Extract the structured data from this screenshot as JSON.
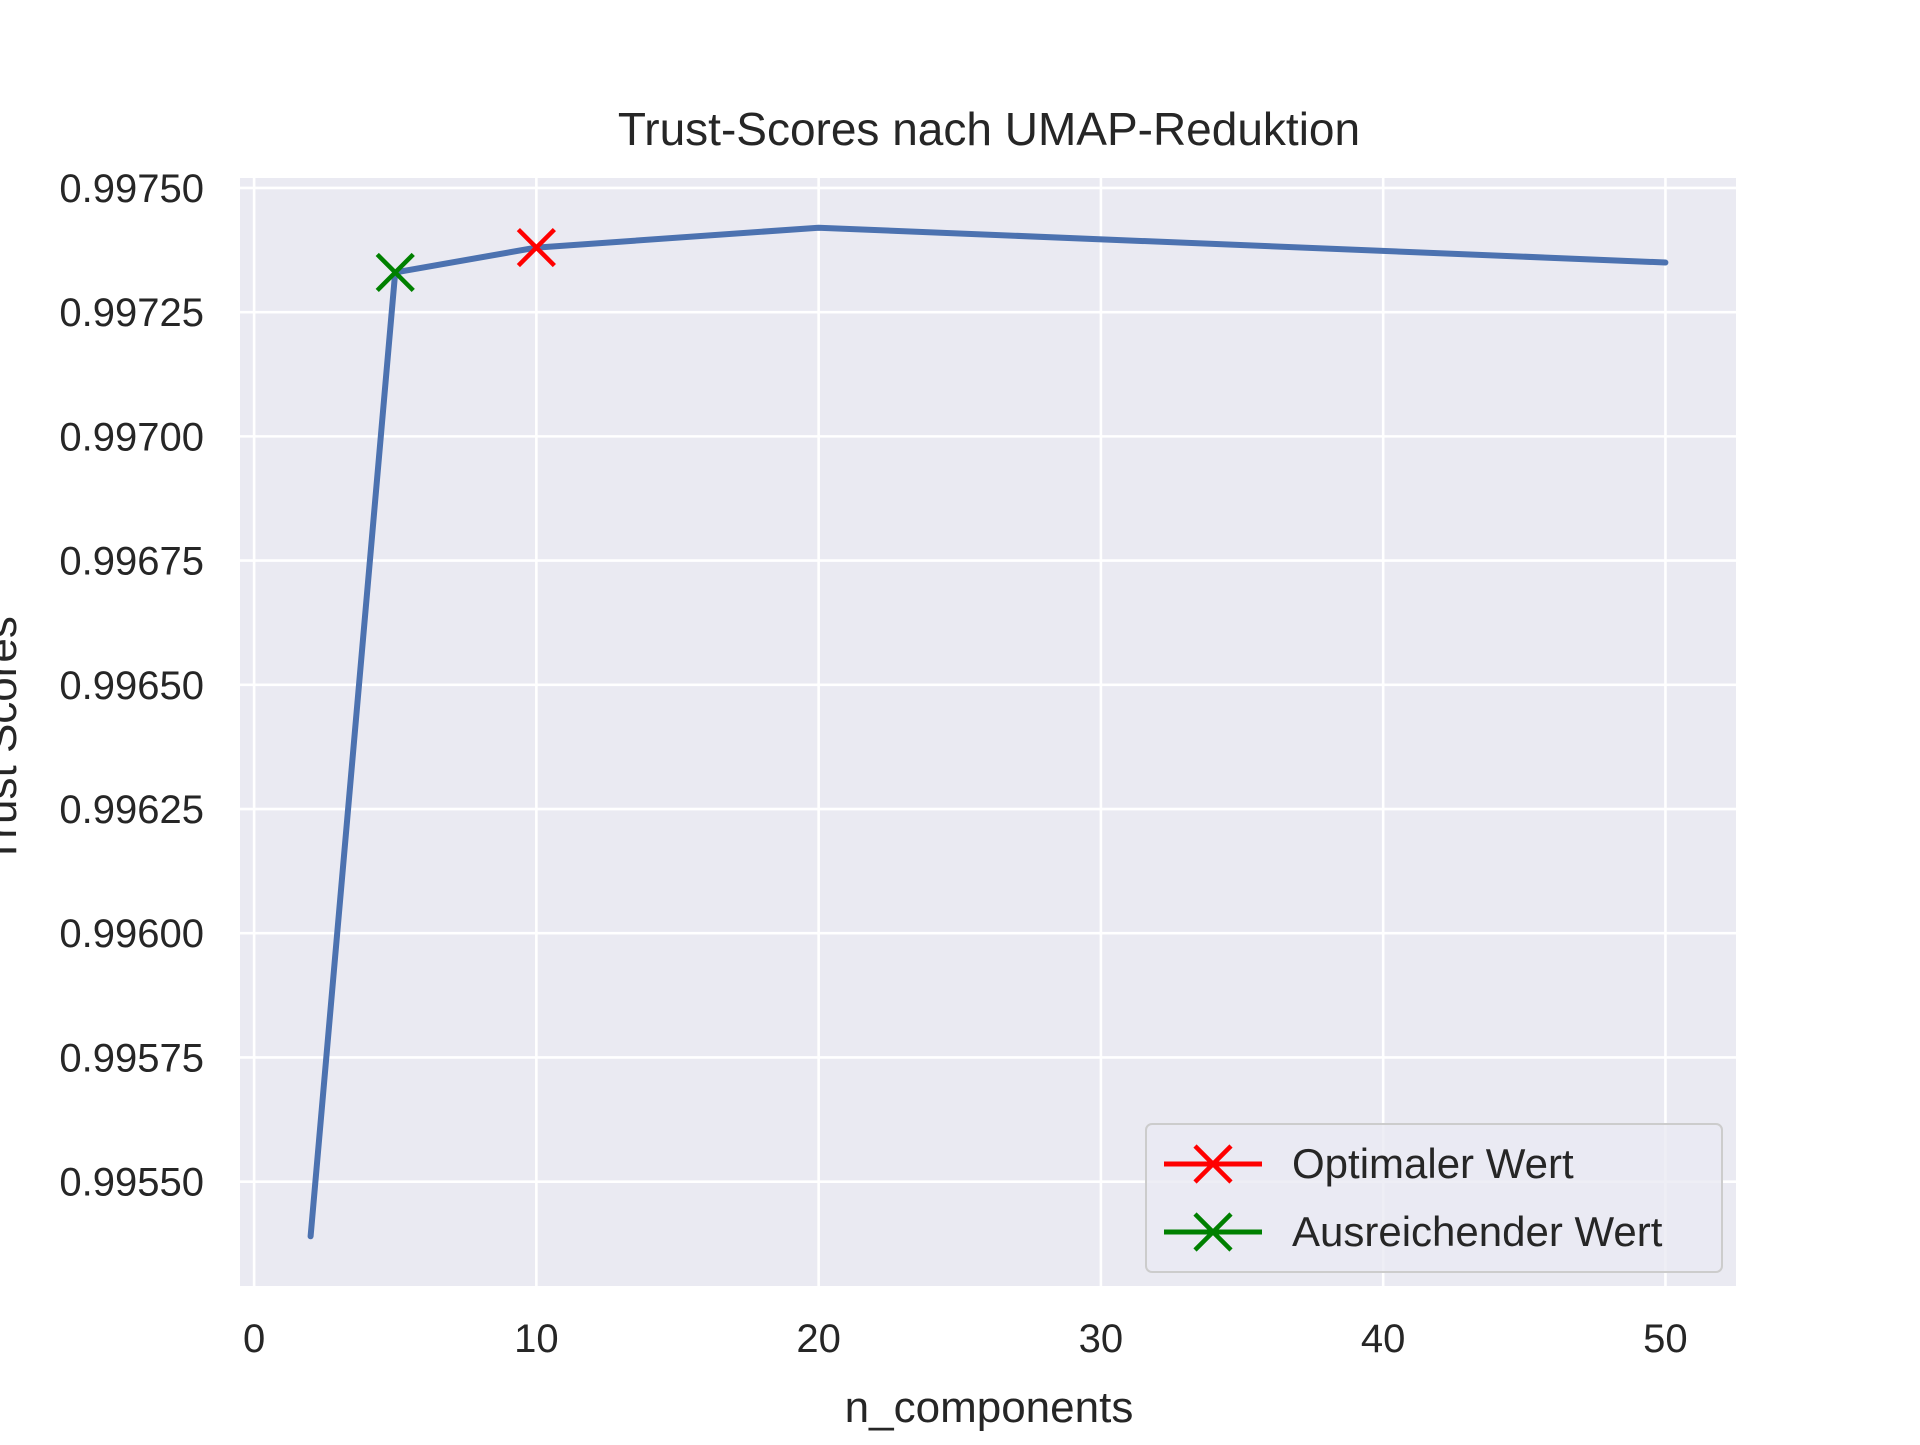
{
  "chart_data": {
    "type": "line",
    "title": "Trust-Scores nach UMAP-Reduktion",
    "xlabel": "n_components",
    "ylabel": "Trust Scores",
    "xlim": [
      -0.5,
      52.5
    ],
    "ylim": [
      0.99529,
      0.99752
    ],
    "xticks": [
      0,
      10,
      20,
      30,
      40,
      50
    ],
    "xtick_labels": [
      "0",
      "10",
      "20",
      "30",
      "40",
      "50"
    ],
    "yticks": [
      0.9955,
      0.99575,
      0.996,
      0.99625,
      0.9965,
      0.99675,
      0.997,
      0.99725,
      0.9975
    ],
    "ytick_labels": [
      "0.99550",
      "0.99575",
      "0.99600",
      "0.99625",
      "0.99650",
      "0.99675",
      "0.99700",
      "0.99725",
      "0.99750"
    ],
    "grid": true,
    "background": "#eaeaf2",
    "series": [
      {
        "x": [
          2,
          5,
          10,
          20,
          50
        ],
        "y": [
          0.99539,
          0.99733,
          0.99738,
          0.99742,
          0.99735
        ],
        "color": "#4c72b0"
      }
    ],
    "markers": [
      {
        "name": "Optimaler Wert",
        "x": 10,
        "y": 0.99738,
        "symbol": "x",
        "color": "#ff0000"
      },
      {
        "name": "Ausreichender Wert",
        "x": 5,
        "y": 0.99733,
        "symbol": "x",
        "color": "#008000"
      }
    ],
    "legend": {
      "placement": "lower right",
      "entries": [
        "Optimaler Wert",
        "Ausreichender Wert"
      ]
    }
  }
}
